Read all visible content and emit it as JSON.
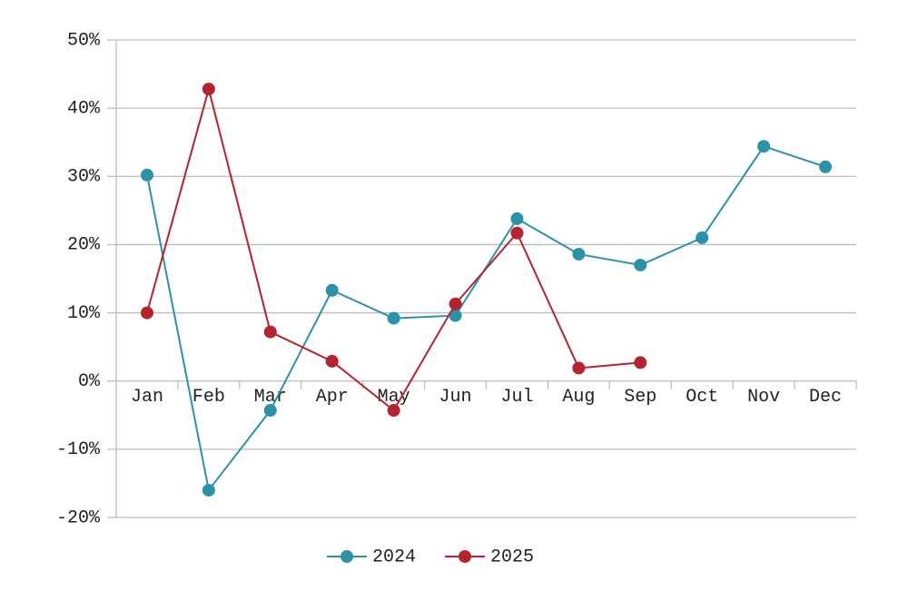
{
  "chart_data": {
    "type": "line",
    "categories": [
      "Jan",
      "Feb",
      "Mar",
      "Apr",
      "May",
      "Jun",
      "Jul",
      "Aug",
      "Sep",
      "Oct",
      "Nov",
      "Dec"
    ],
    "series": [
      {
        "name": "2024",
        "color": "#2a93a8",
        "values": [
          30.2,
          -16.0,
          -4.3,
          13.3,
          9.2,
          9.6,
          23.8,
          18.6,
          17.0,
          21.0,
          34.4,
          31.4
        ]
      },
      {
        "name": "2025",
        "color": "#b5232f",
        "values": [
          10.0,
          42.8,
          7.2,
          2.9,
          -4.3,
          11.3,
          21.7,
          1.9,
          2.7,
          null,
          null,
          null
        ]
      }
    ],
    "ylim": [
      -20,
      50
    ],
    "yticks": [
      {
        "value": -20,
        "label": "-20%"
      },
      {
        "value": -10,
        "label": "-10%"
      },
      {
        "value": 0,
        "label": "0%"
      },
      {
        "value": 10,
        "label": "10%"
      },
      {
        "value": 20,
        "label": "20%"
      },
      {
        "value": 30,
        "label": "30%"
      },
      {
        "value": 40,
        "label": "40%"
      },
      {
        "value": 50,
        "label": "50%"
      }
    ],
    "grid": true,
    "legend": "bottom"
  }
}
